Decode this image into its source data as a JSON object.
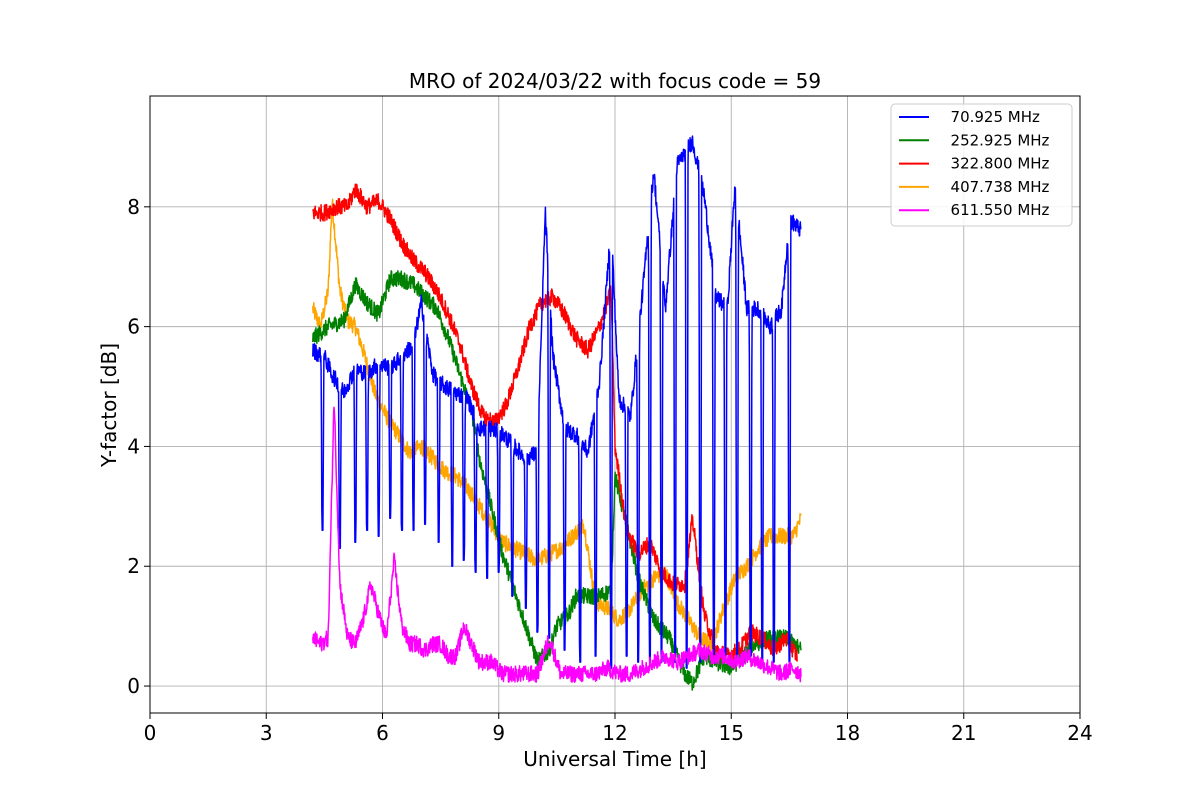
{
  "chart_data": {
    "type": "line",
    "title": "MRO of 2024/03/22 with focus code = 59",
    "xlabel": "Universal Time [h]",
    "ylabel": "Y-factor [dB]",
    "xlim": [
      0,
      24
    ],
    "ylim": [
      -0.45,
      9.85
    ],
    "xticks": [
      0,
      3,
      6,
      9,
      12,
      15,
      18,
      21,
      24
    ],
    "yticks": [
      0,
      2,
      4,
      6,
      8
    ],
    "grid": true,
    "legend_position": "top-right",
    "series": [
      {
        "name": "  70.925 MHz",
        "color": "#0000ff",
        "points": [
          [
            4.2,
            5.6
          ],
          [
            4.5,
            5.5
          ],
          [
            4.7,
            5.2
          ],
          [
            5.0,
            4.9
          ],
          [
            5.3,
            5.3
          ],
          [
            5.6,
            5.2
          ],
          [
            5.9,
            5.4
          ],
          [
            6.2,
            5.3
          ],
          [
            6.5,
            5.5
          ],
          [
            6.8,
            5.7
          ],
          [
            7.0,
            6.4
          ],
          [
            7.3,
            5.2
          ],
          [
            7.6,
            5.0
          ],
          [
            7.9,
            4.9
          ],
          [
            8.2,
            4.8
          ],
          [
            8.5,
            4.3
          ],
          [
            8.8,
            4.3
          ],
          [
            9.1,
            4.2
          ],
          [
            9.4,
            4.0
          ],
          [
            9.7,
            3.8
          ],
          [
            10.0,
            3.9
          ],
          [
            10.2,
            7.9
          ],
          [
            10.4,
            5.5
          ],
          [
            10.7,
            4.3
          ],
          [
            11.0,
            4.2
          ],
          [
            11.3,
            3.9
          ],
          [
            11.6,
            5.1
          ],
          [
            11.9,
            7.7
          ],
          [
            12.1,
            4.8
          ],
          [
            12.4,
            4.5
          ],
          [
            12.7,
            6.5
          ],
          [
            13.0,
            8.6
          ],
          [
            13.3,
            6.3
          ],
          [
            13.6,
            8.7
          ],
          [
            14.0,
            9.1
          ],
          [
            14.3,
            8.2
          ],
          [
            14.6,
            6.5
          ],
          [
            14.9,
            6.3
          ],
          [
            15.1,
            8.4
          ],
          [
            15.4,
            6.3
          ],
          [
            15.7,
            6.3
          ],
          [
            16.0,
            6.0
          ],
          [
            16.3,
            6.3
          ],
          [
            16.5,
            7.8
          ],
          [
            16.8,
            7.6
          ]
        ],
        "dips": [
          [
            4.45,
            2.6
          ],
          [
            4.9,
            2.3
          ],
          [
            5.3,
            2.4
          ],
          [
            5.6,
            2.6
          ],
          [
            5.9,
            2.5
          ],
          [
            6.2,
            2.8
          ],
          [
            6.5,
            2.6
          ],
          [
            6.8,
            2.6
          ],
          [
            7.1,
            2.7
          ],
          [
            7.45,
            2.4
          ],
          [
            7.8,
            2.0
          ],
          [
            8.1,
            2.1
          ],
          [
            8.4,
            1.9
          ],
          [
            8.7,
            1.8
          ],
          [
            9.0,
            1.9
          ],
          [
            9.35,
            1.5
          ],
          [
            9.7,
            1.3
          ],
          [
            10.0,
            0.9
          ],
          [
            10.3,
            0.8
          ],
          [
            10.7,
            0.6
          ],
          [
            11.1,
            0.4
          ],
          [
            11.5,
            0.5
          ],
          [
            11.9,
            0.3
          ],
          [
            12.3,
            0.5
          ],
          [
            12.6,
            0.4
          ],
          [
            12.9,
            0.4
          ],
          [
            13.2,
            0.4
          ],
          [
            13.55,
            0.4
          ],
          [
            13.85,
            0.3
          ],
          [
            14.2,
            0.4
          ],
          [
            14.55,
            0.4
          ],
          [
            14.85,
            0.4
          ],
          [
            15.15,
            0.4
          ],
          [
            15.5,
            0.5
          ],
          [
            15.8,
            0.4
          ],
          [
            16.1,
            0.4
          ],
          [
            16.5,
            0.4
          ]
        ]
      },
      {
        "name": "  252.925 MHz",
        "color": "#008000",
        "points": [
          [
            4.2,
            5.8
          ],
          [
            4.6,
            6.0
          ],
          [
            5.0,
            6.1
          ],
          [
            5.3,
            6.7
          ],
          [
            5.6,
            6.4
          ],
          [
            5.9,
            6.2
          ],
          [
            6.2,
            6.8
          ],
          [
            6.5,
            6.8
          ],
          [
            6.8,
            6.7
          ],
          [
            7.1,
            6.5
          ],
          [
            7.4,
            6.3
          ],
          [
            7.7,
            5.8
          ],
          [
            8.0,
            5.2
          ],
          [
            8.3,
            4.6
          ],
          [
            8.5,
            3.8
          ],
          [
            8.8,
            3.0
          ],
          [
            9.1,
            2.2
          ],
          [
            9.4,
            1.6
          ],
          [
            9.7,
            1.0
          ],
          [
            10.0,
            0.4
          ],
          [
            10.3,
            0.6
          ],
          [
            10.5,
            1.0
          ],
          [
            10.8,
            1.2
          ],
          [
            11.0,
            1.5
          ],
          [
            11.3,
            1.5
          ],
          [
            11.6,
            1.5
          ],
          [
            11.9,
            1.6
          ],
          [
            12.0,
            3.5
          ],
          [
            12.3,
            2.7
          ],
          [
            12.6,
            1.8
          ],
          [
            13.0,
            1.1
          ],
          [
            13.4,
            0.8
          ],
          [
            13.8,
            0.2
          ],
          [
            14.0,
            0.05
          ],
          [
            14.3,
            0.5
          ],
          [
            14.6,
            0.4
          ],
          [
            15.0,
            0.3
          ],
          [
            15.3,
            0.5
          ],
          [
            15.6,
            0.7
          ],
          [
            16.0,
            0.8
          ],
          [
            16.4,
            0.8
          ],
          [
            16.8,
            0.6
          ]
        ]
      },
      {
        "name": "  322.800 MHz",
        "color": "#ff0000",
        "points": [
          [
            4.2,
            7.9
          ],
          [
            4.5,
            7.9
          ],
          [
            4.8,
            8.0
          ],
          [
            5.1,
            8.0
          ],
          [
            5.3,
            8.3
          ],
          [
            5.6,
            8.0
          ],
          [
            5.9,
            8.1
          ],
          [
            6.2,
            7.8
          ],
          [
            6.5,
            7.4
          ],
          [
            6.8,
            7.1
          ],
          [
            7.1,
            6.9
          ],
          [
            7.4,
            6.6
          ],
          [
            7.7,
            6.2
          ],
          [
            8.0,
            5.7
          ],
          [
            8.3,
            5.0
          ],
          [
            8.6,
            4.5
          ],
          [
            8.9,
            4.4
          ],
          [
            9.2,
            4.7
          ],
          [
            9.5,
            5.3
          ],
          [
            9.8,
            6.0
          ],
          [
            10.1,
            6.4
          ],
          [
            10.4,
            6.5
          ],
          [
            10.7,
            6.2
          ],
          [
            11.0,
            5.8
          ],
          [
            11.3,
            5.6
          ],
          [
            11.6,
            6.0
          ],
          [
            11.9,
            6.6
          ],
          [
            12.0,
            4.0
          ],
          [
            12.3,
            2.6
          ],
          [
            12.6,
            2.2
          ],
          [
            12.9,
            2.4
          ],
          [
            13.2,
            1.9
          ],
          [
            13.5,
            1.7
          ],
          [
            13.8,
            1.7
          ],
          [
            14.0,
            2.8
          ],
          [
            14.3,
            1.2
          ],
          [
            14.6,
            0.6
          ],
          [
            14.9,
            0.5
          ],
          [
            15.2,
            0.6
          ],
          [
            15.5,
            0.9
          ],
          [
            15.8,
            0.8
          ],
          [
            16.1,
            0.6
          ],
          [
            16.4,
            0.8
          ],
          [
            16.7,
            0.5
          ]
        ]
      },
      {
        "name": "  407.738 MHz",
        "color": "#ffa500",
        "points": [
          [
            4.2,
            6.3
          ],
          [
            4.4,
            6.0
          ],
          [
            4.6,
            6.6
          ],
          [
            4.7,
            8.1
          ],
          [
            4.9,
            6.6
          ],
          [
            5.1,
            6.1
          ],
          [
            5.3,
            6.0
          ],
          [
            5.5,
            5.6
          ],
          [
            5.8,
            4.9
          ],
          [
            6.1,
            4.5
          ],
          [
            6.4,
            4.2
          ],
          [
            6.7,
            3.9
          ],
          [
            7.0,
            4.0
          ],
          [
            7.3,
            3.8
          ],
          [
            7.6,
            3.6
          ],
          [
            7.9,
            3.5
          ],
          [
            8.2,
            3.3
          ],
          [
            8.5,
            3.0
          ],
          [
            8.8,
            2.7
          ],
          [
            9.1,
            2.4
          ],
          [
            9.4,
            2.3
          ],
          [
            9.7,
            2.2
          ],
          [
            10.0,
            2.1
          ],
          [
            10.3,
            2.2
          ],
          [
            10.6,
            2.3
          ],
          [
            10.9,
            2.5
          ],
          [
            11.2,
            2.7
          ],
          [
            11.5,
            1.4
          ],
          [
            11.8,
            1.3
          ],
          [
            12.1,
            1.1
          ],
          [
            12.4,
            1.3
          ],
          [
            12.7,
            1.6
          ],
          [
            13.0,
            1.8
          ],
          [
            13.3,
            1.9
          ],
          [
            13.6,
            1.4
          ],
          [
            13.9,
            1.1
          ],
          [
            14.2,
            0.8
          ],
          [
            14.5,
            0.7
          ],
          [
            14.8,
            1.3
          ],
          [
            15.1,
            1.8
          ],
          [
            15.4,
            2.0
          ],
          [
            15.7,
            2.3
          ],
          [
            16.0,
            2.5
          ],
          [
            16.3,
            2.5
          ],
          [
            16.6,
            2.5
          ],
          [
            16.8,
            2.8
          ]
        ]
      },
      {
        "name": "  611.550 MHz",
        "color": "#ff00ff",
        "points": [
          [
            4.2,
            0.8
          ],
          [
            4.4,
            0.7
          ],
          [
            4.6,
            0.8
          ],
          [
            4.75,
            4.8
          ],
          [
            4.9,
            1.7
          ],
          [
            5.1,
            0.8
          ],
          [
            5.3,
            0.7
          ],
          [
            5.5,
            1.1
          ],
          [
            5.7,
            1.7
          ],
          [
            5.9,
            1.2
          ],
          [
            6.1,
            0.8
          ],
          [
            6.3,
            2.1
          ],
          [
            6.5,
            1.0
          ],
          [
            6.7,
            0.7
          ],
          [
            6.9,
            0.7
          ],
          [
            7.1,
            0.6
          ],
          [
            7.3,
            0.7
          ],
          [
            7.5,
            0.7
          ],
          [
            7.7,
            0.5
          ],
          [
            7.9,
            0.5
          ],
          [
            8.1,
            1.0
          ],
          [
            8.3,
            0.7
          ],
          [
            8.5,
            0.4
          ],
          [
            8.8,
            0.4
          ],
          [
            9.1,
            0.2
          ],
          [
            9.4,
            0.2
          ],
          [
            9.7,
            0.2
          ],
          [
            10.0,
            0.2
          ],
          [
            10.3,
            0.8
          ],
          [
            10.6,
            0.2
          ],
          [
            10.9,
            0.2
          ],
          [
            11.2,
            0.2
          ],
          [
            11.5,
            0.2
          ],
          [
            11.8,
            0.3
          ],
          [
            12.1,
            0.2
          ],
          [
            12.4,
            0.2
          ],
          [
            12.7,
            0.3
          ],
          [
            13.0,
            0.4
          ],
          [
            13.3,
            0.5
          ],
          [
            13.6,
            0.4
          ],
          [
            13.9,
            0.5
          ],
          [
            14.2,
            0.6
          ],
          [
            14.5,
            0.5
          ],
          [
            14.8,
            0.5
          ],
          [
            15.1,
            0.4
          ],
          [
            15.4,
            0.5
          ],
          [
            15.7,
            0.4
          ],
          [
            16.0,
            0.3
          ],
          [
            16.3,
            0.2
          ],
          [
            16.6,
            0.3
          ],
          [
            16.8,
            0.2
          ]
        ]
      }
    ]
  }
}
